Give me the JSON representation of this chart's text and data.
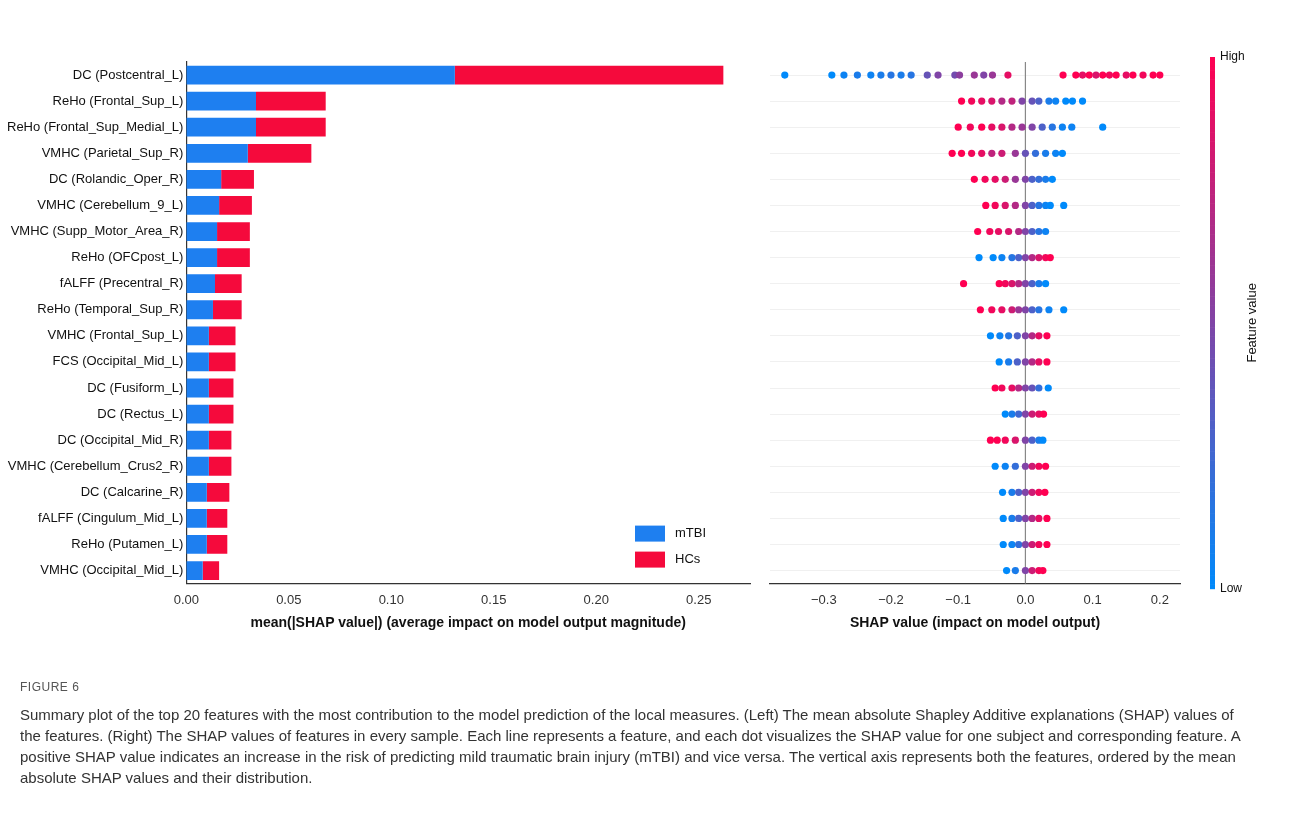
{
  "chart_data": [
    {
      "type": "bar",
      "orientation": "horizontal",
      "stacked": true,
      "categories": [
        "DC (Postcentral_L)",
        "ReHo (Frontal_Sup_L)",
        "ReHo (Frontal_Sup_Medial_L)",
        "VMHC (Parietal_Sup_R)",
        "DC (Rolandic_Oper_R)",
        "VMHC (Cerebellum_9_L)",
        "VMHC (Supp_Motor_Area_R)",
        "ReHo (OFCpost_L)",
        "fALFF (Precentral_R)",
        "ReHo (Temporal_Sup_R)",
        "VMHC (Frontal_Sup_L)",
        "FCS (Occipital_Mid_L)",
        "DC (Fusiform_L)",
        "DC (Rectus_L)",
        "DC (Occipital_Mid_R)",
        "VMHC (Cerebellum_Crus2_R)",
        "DC (Calcarine_R)",
        "fALFF (Cingulum_Mid_L)",
        "ReHo (Putamen_L)",
        "VMHC (Occipital_Mid_L)"
      ],
      "series": [
        {
          "name": "mTBI",
          "color": "#1e7ff0",
          "values": [
            0.131,
            0.034,
            0.034,
            0.03,
            0.017,
            0.016,
            0.015,
            0.015,
            0.014,
            0.013,
            0.011,
            0.011,
            0.011,
            0.011,
            0.011,
            0.011,
            0.01,
            0.01,
            0.01,
            0.008
          ]
        },
        {
          "name": "HCs",
          "color": "#f50a3c",
          "values": [
            0.131,
            0.034,
            0.034,
            0.031,
            0.016,
            0.016,
            0.016,
            0.016,
            0.013,
            0.014,
            0.013,
            0.013,
            0.012,
            0.012,
            0.011,
            0.011,
            0.011,
            0.01,
            0.01,
            0.008
          ]
        }
      ],
      "xlabel": "mean(|SHAP value|) (average impact on model output magnitude)",
      "xlim": [
        0,
        0.275
      ],
      "xticks": [
        {
          "value": 0,
          "label": "0.00"
        },
        {
          "value": 0.05,
          "label": "0.05"
        },
        {
          "value": 0.1,
          "label": "0.10"
        },
        {
          "value": 0.15,
          "label": "0.15"
        },
        {
          "value": 0.2,
          "label": "0.20"
        },
        {
          "value": 0.25,
          "label": "0.25"
        }
      ],
      "grid": false,
      "legend": "bottom right",
      "annotations": [
        "FIGURE 6",
        "Summary plot of the top 20 features with the most contribution to the model prediction of the local measures. (Left) The mean absolute Shapley Additive explanations (SHAP) values of the features. (Right) The SHAP values of features in every sample. Each line represents a feature, and each dot visualizes the SHAP value for one subject and corresponding feature. A positive SHAP value indicates an increase in the risk of predicting mild traumatic brain injury (mTBI) and vice versa. The vertical axis represents both the features, ordered by the mean absolute SHAP values and their distribution."
      ]
    },
    {
      "type": "scatter",
      "orientation": "horizontal",
      "marker": "circle",
      "tick_labels": "x",
      "grid": "y",
      "categories": [
        "DC (Postcentral_L)",
        "ReHo (Frontal_Sup_L)",
        "ReHo (Frontal_Sup_Medial_L)",
        "VMHC (Parietal_Sup_R)",
        "DC (Rolandic_Oper_R)",
        "VMHC (Cerebellum_9_L)",
        "VMHC (Supp_Motor_Area_R)",
        "ReHo (OFCpost_L)",
        "fALFF (Precentral_R)",
        "ReHo (Temporal_Sup_R)",
        "VMHC (Frontal_Sup_L)",
        "FCS (Occipital_Mid_L)",
        "DC (Fusiform_L)",
        "DC (Rectus_L)",
        "DC (Occipital_Mid_R)",
        "VMHC (Cerebellum_Crus2_R)",
        "DC (Calcarine_R)",
        "fALFF (Cingulum_Mid_L)",
        "ReHo (Putamen_L)",
        "VMHC (Occipital_Mid_L)"
      ],
      "series": [
        {
          "x": [
            "DC (Postcentral_L)",
            "DC (Postcentral_L)",
            "DC (Postcentral_L)",
            "DC (Postcentral_L)",
            "DC (Postcentral_L)",
            "DC (Postcentral_L)",
            "DC (Postcentral_L)",
            "DC (Postcentral_L)",
            "DC (Postcentral_L)",
            "DC (Postcentral_L)",
            "DC (Postcentral_L)",
            "DC (Postcentral_L)",
            "DC (Postcentral_L)",
            "DC (Postcentral_L)",
            "DC (Postcentral_L)",
            "DC (Postcentral_L)",
            "DC (Postcentral_L)",
            "DC (Postcentral_L)",
            "DC (Postcentral_L)",
            "DC (Postcentral_L)",
            "DC (Postcentral_L)",
            "DC (Postcentral_L)",
            "DC (Postcentral_L)",
            "DC (Postcentral_L)",
            "DC (Postcentral_L)",
            "DC (Postcentral_L)",
            "DC (Postcentral_L)",
            "DC (Postcentral_L)",
            "DC (Postcentral_L)",
            "DC (Postcentral_L)"
          ],
          "values": [
            -0.358,
            -0.288,
            -0.27,
            -0.25,
            -0.23,
            -0.215,
            -0.2,
            -0.185,
            -0.17,
            -0.146,
            -0.13,
            -0.105,
            -0.098,
            -0.076,
            -0.062,
            -0.049,
            -0.026,
            0.056,
            0.075,
            0.085,
            0.095,
            0.105,
            0.115,
            0.125,
            0.135,
            0.15,
            0.16,
            0.175,
            0.19,
            0.2
          ],
          "colors": [
            "#008afb",
            "#008afb",
            "#0d83f3",
            "#1a7cea",
            "#0d83f3",
            "#1a7cea",
            "#2675e2",
            "#1a7cea",
            "#2675e2",
            "#6653b7",
            "#8045a7",
            "#734caf",
            "#8c3e9e",
            "#993796",
            "#8045a7",
            "#993796",
            "#e60e63",
            "#ff0052",
            "#ff0052",
            "#e60e63",
            "#ff0052",
            "#d9156b",
            "#ff0052",
            "#f2075a",
            "#ff0052",
            "#e60e63",
            "#ff0052",
            "#f2075a",
            "#ff0052",
            "#ff0052"
          ]
        },
        {
          "x": [
            "ReHo (Frontal_Sup_L)",
            "ReHo (Frontal_Sup_L)",
            "ReHo (Frontal_Sup_L)",
            "ReHo (Frontal_Sup_L)",
            "ReHo (Frontal_Sup_L)",
            "ReHo (Frontal_Sup_L)",
            "ReHo (Frontal_Sup_L)",
            "ReHo (Frontal_Sup_L)",
            "ReHo (Frontal_Sup_L)",
            "ReHo (Frontal_Sup_L)",
            "ReHo (Frontal_Sup_L)",
            "ReHo (Frontal_Sup_L)",
            "ReHo (Frontal_Sup_L)",
            "ReHo (Frontal_Sup_L)"
          ],
          "values": [
            -0.095,
            -0.08,
            -0.065,
            -0.05,
            -0.035,
            -0.02,
            -0.005,
            0.01,
            0.02,
            0.035,
            0.045,
            0.06,
            0.07,
            0.085
          ],
          "colors": [
            "#ff0052",
            "#f2075a",
            "#e60e63",
            "#d9156b",
            "#b32985",
            "#bf237c",
            "#8045a7",
            "#6653b7",
            "#4d61c8",
            "#1a7cea",
            "#0d83f3",
            "#008afb",
            "#008afb",
            "#008afb"
          ]
        },
        {
          "x": [
            "ReHo (Frontal_Sup_Medial_L)",
            "ReHo (Frontal_Sup_Medial_L)",
            "ReHo (Frontal_Sup_Medial_L)",
            "ReHo (Frontal_Sup_Medial_L)",
            "ReHo (Frontal_Sup_Medial_L)",
            "ReHo (Frontal_Sup_Medial_L)",
            "ReHo (Frontal_Sup_Medial_L)",
            "ReHo (Frontal_Sup_Medial_L)",
            "ReHo (Frontal_Sup_Medial_L)",
            "ReHo (Frontal_Sup_Medial_L)",
            "ReHo (Frontal_Sup_Medial_L)",
            "ReHo (Frontal_Sup_Medial_L)",
            "ReHo (Frontal_Sup_Medial_L)"
          ],
          "values": [
            -0.1,
            -0.082,
            -0.065,
            -0.05,
            -0.035,
            -0.02,
            -0.005,
            0.01,
            0.025,
            0.04,
            0.055,
            0.069,
            0.115
          ],
          "colors": [
            "#ff0052",
            "#f2075a",
            "#ff0052",
            "#e60e63",
            "#d9156b",
            "#b32985",
            "#993796",
            "#8045a7",
            "#4d61c8",
            "#2675e2",
            "#0d83f3",
            "#0d83f3",
            "#008afb"
          ]
        },
        {
          "x": [
            "VMHC (Parietal_Sup_R)",
            "VMHC (Parietal_Sup_R)",
            "VMHC (Parietal_Sup_R)",
            "VMHC (Parietal_Sup_R)",
            "VMHC (Parietal_Sup_R)",
            "VMHC (Parietal_Sup_R)",
            "VMHC (Parietal_Sup_R)",
            "VMHC (Parietal_Sup_R)",
            "VMHC (Parietal_Sup_R)",
            "VMHC (Parietal_Sup_R)",
            "VMHC (Parietal_Sup_R)",
            "VMHC (Parietal_Sup_R)"
          ],
          "values": [
            -0.109,
            -0.095,
            -0.08,
            -0.065,
            -0.05,
            -0.035,
            -0.015,
            0,
            0.015,
            0.03,
            0.045,
            0.055
          ],
          "colors": [
            "#ff0052",
            "#ff0052",
            "#f2075a",
            "#e60e63",
            "#bf237c",
            "#cc1c74",
            "#993796",
            "#6653b7",
            "#336ed9",
            "#1a7cea",
            "#0d83f3",
            "#008afb"
          ]
        },
        {
          "x": [
            "DC (Rolandic_Oper_R)",
            "DC (Rolandic_Oper_R)",
            "DC (Rolandic_Oper_R)",
            "DC (Rolandic_Oper_R)",
            "DC (Rolandic_Oper_R)",
            "DC (Rolandic_Oper_R)",
            "DC (Rolandic_Oper_R)",
            "DC (Rolandic_Oper_R)",
            "DC (Rolandic_Oper_R)",
            "DC (Rolandic_Oper_R)"
          ],
          "values": [
            -0.076,
            -0.06,
            -0.045,
            -0.03,
            -0.015,
            0,
            0.01,
            0.02,
            0.03,
            0.04
          ],
          "colors": [
            "#ff0052",
            "#f2075a",
            "#e60e63",
            "#cc1c74",
            "#993796",
            "#8045a7",
            "#4d61c8",
            "#336ed9",
            "#1a7cea",
            "#008afb"
          ]
        },
        {
          "x": [
            "VMHC (Cerebellum_9_L)",
            "VMHC (Cerebellum_9_L)",
            "VMHC (Cerebellum_9_L)",
            "VMHC (Cerebellum_9_L)",
            "VMHC (Cerebellum_9_L)",
            "VMHC (Cerebellum_9_L)",
            "VMHC (Cerebellum_9_L)",
            "VMHC (Cerebellum_9_L)",
            "VMHC (Cerebellum_9_L)",
            "VMHC (Cerebellum_9_L)"
          ],
          "values": [
            -0.059,
            -0.045,
            -0.03,
            -0.015,
            0,
            0.01,
            0.02,
            0.03,
            0.037,
            0.057
          ],
          "colors": [
            "#ff0052",
            "#f2075a",
            "#d9156b",
            "#b32985",
            "#8045a7",
            "#4d61c8",
            "#2675e2",
            "#0d83f3",
            "#008afb",
            "#008afb"
          ]
        },
        {
          "x": [
            "VMHC (Supp_Motor_Area_R)",
            "VMHC (Supp_Motor_Area_R)",
            "VMHC (Supp_Motor_Area_R)",
            "VMHC (Supp_Motor_Area_R)",
            "VMHC (Supp_Motor_Area_R)",
            "VMHC (Supp_Motor_Area_R)",
            "VMHC (Supp_Motor_Area_R)",
            "VMHC (Supp_Motor_Area_R)",
            "VMHC (Supp_Motor_Area_R)"
          ],
          "values": [
            -0.071,
            -0.053,
            -0.04,
            -0.025,
            -0.01,
            0,
            0.01,
            0.02,
            0.03
          ],
          "colors": [
            "#ff0052",
            "#f2075a",
            "#e60e63",
            "#d9156b",
            "#b32985",
            "#8045a7",
            "#4d61c8",
            "#2675e2",
            "#0d83f3"
          ]
        },
        {
          "x": [
            "ReHo (OFCpost_L)",
            "ReHo (OFCpost_L)",
            "ReHo (OFCpost_L)",
            "ReHo (OFCpost_L)",
            "ReHo (OFCpost_L)",
            "ReHo (OFCpost_L)",
            "ReHo (OFCpost_L)",
            "ReHo (OFCpost_L)",
            "ReHo (OFCpost_L)",
            "ReHo (OFCpost_L)"
          ],
          "values": [
            -0.069,
            -0.048,
            -0.035,
            -0.02,
            -0.01,
            0,
            0.01,
            0.02,
            0.03,
            0.037
          ],
          "colors": [
            "#008afb",
            "#008afb",
            "#0d83f3",
            "#2675e2",
            "#4d61c8",
            "#8045a7",
            "#b32985",
            "#d9156b",
            "#f2075a",
            "#ff0052"
          ]
        },
        {
          "x": [
            "fALFF (Precentral_R)",
            "fALFF (Precentral_R)",
            "fALFF (Precentral_R)",
            "fALFF (Precentral_R)",
            "fALFF (Precentral_R)",
            "fALFF (Precentral_R)",
            "fALFF (Precentral_R)",
            "fALFF (Precentral_R)",
            "fALFF (Precentral_R)"
          ],
          "values": [
            -0.092,
            -0.039,
            -0.03,
            -0.02,
            -0.01,
            0,
            0.01,
            0.02,
            0.03
          ],
          "colors": [
            "#ff0052",
            "#ff0052",
            "#f2075a",
            "#d9156b",
            "#b32985",
            "#8045a7",
            "#4d61c8",
            "#1a7cea",
            "#008afb"
          ]
        },
        {
          "x": [
            "ReHo (Temporal_Sup_R)",
            "ReHo (Temporal_Sup_R)",
            "ReHo (Temporal_Sup_R)",
            "ReHo (Temporal_Sup_R)",
            "ReHo (Temporal_Sup_R)",
            "ReHo (Temporal_Sup_R)",
            "ReHo (Temporal_Sup_R)",
            "ReHo (Temporal_Sup_R)",
            "ReHo (Temporal_Sup_R)",
            "ReHo (Temporal_Sup_R)"
          ],
          "values": [
            -0.067,
            -0.05,
            -0.035,
            -0.02,
            -0.01,
            0,
            0.01,
            0.02,
            0.035,
            0.057
          ],
          "colors": [
            "#ff0052",
            "#f2075a",
            "#e60e63",
            "#cc1c74",
            "#993796",
            "#8045a7",
            "#4d61c8",
            "#2675e2",
            "#0d83f3",
            "#008afb"
          ]
        },
        {
          "x": [
            "VMHC (Frontal_Sup_L)",
            "VMHC (Frontal_Sup_L)",
            "VMHC (Frontal_Sup_L)",
            "VMHC (Frontal_Sup_L)",
            "VMHC (Frontal_Sup_L)",
            "VMHC (Frontal_Sup_L)",
            "VMHC (Frontal_Sup_L)",
            "VMHC (Frontal_Sup_L)"
          ],
          "values": [
            -0.052,
            -0.038,
            -0.025,
            -0.012,
            0,
            0.01,
            0.02,
            0.032
          ],
          "colors": [
            "#008afb",
            "#0d83f3",
            "#2675e2",
            "#4d61c8",
            "#8045a7",
            "#b32985",
            "#e60e63",
            "#ff0052"
          ]
        },
        {
          "x": [
            "FCS (Occipital_Mid_L)",
            "FCS (Occipital_Mid_L)",
            "FCS (Occipital_Mid_L)",
            "FCS (Occipital_Mid_L)",
            "FCS (Occipital_Mid_L)",
            "FCS (Occipital_Mid_L)",
            "FCS (Occipital_Mid_L)"
          ],
          "values": [
            -0.039,
            -0.025,
            -0.012,
            0,
            0.01,
            0.02,
            0.032
          ],
          "colors": [
            "#008afb",
            "#1a7cea",
            "#4d61c8",
            "#8045a7",
            "#b32985",
            "#e60e63",
            "#ff0052"
          ]
        },
        {
          "x": [
            "DC (Fusiform_L)",
            "DC (Fusiform_L)",
            "DC (Fusiform_L)",
            "DC (Fusiform_L)",
            "DC (Fusiform_L)",
            "DC (Fusiform_L)",
            "DC (Fusiform_L)",
            "DC (Fusiform_L)"
          ],
          "values": [
            -0.045,
            -0.035,
            -0.02,
            -0.01,
            0,
            0.01,
            0.02,
            0.034
          ],
          "colors": [
            "#ff0052",
            "#f2075a",
            "#e60e63",
            "#b32985",
            "#8045a7",
            "#6653b7",
            "#336ed9",
            "#008afb"
          ]
        },
        {
          "x": [
            "DC (Rectus_L)",
            "DC (Rectus_L)",
            "DC (Rectus_L)",
            "DC (Rectus_L)",
            "DC (Rectus_L)",
            "DC (Rectus_L)",
            "DC (Rectus_L)"
          ],
          "values": [
            -0.03,
            -0.02,
            -0.01,
            0,
            0.01,
            0.02,
            0.027
          ],
          "colors": [
            "#008afb",
            "#1a7cea",
            "#4068d1",
            "#8045a7",
            "#cc1c74",
            "#e60e63",
            "#ff0052"
          ]
        },
        {
          "x": [
            "DC (Occipital_Mid_R)",
            "DC (Occipital_Mid_R)",
            "DC (Occipital_Mid_R)",
            "DC (Occipital_Mid_R)",
            "DC (Occipital_Mid_R)",
            "DC (Occipital_Mid_R)",
            "DC (Occipital_Mid_R)",
            "DC (Occipital_Mid_R)"
          ],
          "values": [
            -0.052,
            -0.042,
            -0.03,
            -0.015,
            0,
            0.01,
            0.02,
            0.026
          ],
          "colors": [
            "#ff0052",
            "#ff0052",
            "#f2075a",
            "#d9156b",
            "#8045a7",
            "#4d61c8",
            "#1a7cea",
            "#008afb"
          ]
        },
        {
          "x": [
            "VMHC (Cerebellum_Crus2_R)",
            "VMHC (Cerebellum_Crus2_R)",
            "VMHC (Cerebellum_Crus2_R)",
            "VMHC (Cerebellum_Crus2_R)",
            "VMHC (Cerebellum_Crus2_R)",
            "VMHC (Cerebellum_Crus2_R)",
            "VMHC (Cerebellum_Crus2_R)"
          ],
          "values": [
            -0.045,
            -0.03,
            -0.015,
            0,
            0.01,
            0.02,
            0.03
          ],
          "colors": [
            "#008afb",
            "#0d83f3",
            "#336ed9",
            "#8045a7",
            "#cc1c74",
            "#f2075a",
            "#ff0052"
          ]
        },
        {
          "x": [
            "DC (Calcarine_R)",
            "DC (Calcarine_R)",
            "DC (Calcarine_R)",
            "DC (Calcarine_R)",
            "DC (Calcarine_R)",
            "DC (Calcarine_R)",
            "DC (Calcarine_R)"
          ],
          "values": [
            -0.034,
            -0.02,
            -0.01,
            0,
            0.01,
            0.02,
            0.029
          ],
          "colors": [
            "#008afb",
            "#1a7cea",
            "#4d61c8",
            "#8045a7",
            "#cc1c74",
            "#f2075a",
            "#ff0052"
          ]
        },
        {
          "x": [
            "fALFF (Cingulum_Mid_L)",
            "fALFF (Cingulum_Mid_L)",
            "fALFF (Cingulum_Mid_L)",
            "fALFF (Cingulum_Mid_L)",
            "fALFF (Cingulum_Mid_L)",
            "fALFF (Cingulum_Mid_L)",
            "fALFF (Cingulum_Mid_L)"
          ],
          "values": [
            -0.033,
            -0.02,
            -0.01,
            0,
            0.01,
            0.02,
            0.032
          ],
          "colors": [
            "#008afb",
            "#1a7cea",
            "#4d61c8",
            "#8045a7",
            "#b32985",
            "#e60e63",
            "#ff0052"
          ]
        },
        {
          "x": [
            "ReHo (Putamen_L)",
            "ReHo (Putamen_L)",
            "ReHo (Putamen_L)",
            "ReHo (Putamen_L)",
            "ReHo (Putamen_L)",
            "ReHo (Putamen_L)",
            "ReHo (Putamen_L)"
          ],
          "values": [
            -0.033,
            -0.02,
            -0.01,
            0,
            0.01,
            0.02,
            0.032
          ],
          "colors": [
            "#008afb",
            "#0d83f3",
            "#336ed9",
            "#8045a7",
            "#cc1c74",
            "#f2075a",
            "#ff0052"
          ]
        },
        {
          "x": [
            "VMHC (Occipital_Mid_L)",
            "VMHC (Occipital_Mid_L)",
            "VMHC (Occipital_Mid_L)",
            "VMHC (Occipital_Mid_L)",
            "VMHC (Occipital_Mid_L)",
            "VMHC (Occipital_Mid_L)"
          ],
          "values": [
            -0.028,
            -0.015,
            0,
            0.01,
            0.02,
            0.026
          ],
          "colors": [
            "#008afb",
            "#1a7cea",
            "#8045a7",
            "#cc1c74",
            "#f2075a",
            "#ff0052"
          ]
        }
      ],
      "xlabel": "SHAP value (impact on model output)",
      "xlim": [
        -0.38,
        0.23
      ],
      "xticks": [
        {
          "value": -0.3,
          "label": "−0.3"
        },
        {
          "value": -0.2,
          "label": "−0.2"
        },
        {
          "value": -0.1,
          "label": "−0.1"
        },
        {
          "value": 0,
          "label": "0.0"
        },
        {
          "value": 0.1,
          "label": "0.1"
        },
        {
          "value": 0.2,
          "label": "0.2"
        }
      ],
      "ref_lines": [
        {
          "axis": "x",
          "value": 0,
          "color": "#888888"
        }
      ],
      "clabel": "Feature value",
      "clim": [
        0,
        1
      ],
      "cticks": [
        {
          "value": 0,
          "label": "Low"
        },
        {
          "value": 1,
          "label": "High"
        }
      ]
    }
  ]
}
